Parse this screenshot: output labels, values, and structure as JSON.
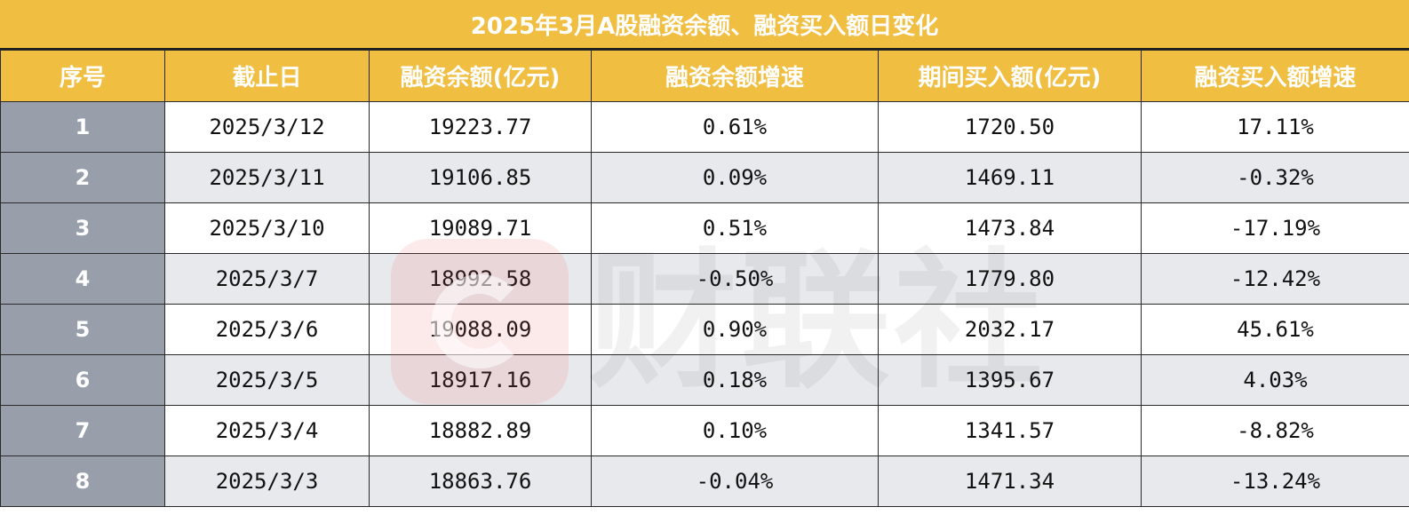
{
  "title": "2025年3月A股融资余额、融资买入额日变化",
  "columns": [
    "序号",
    "截止日",
    "融资余额(亿元)",
    "融资余额增速",
    "期间买入额(亿元)",
    "融资买入额增速"
  ],
  "rows": [
    [
      "1",
      "2025/3/12",
      "19223.77",
      "0.61%",
      "1720.50",
      "17.11%"
    ],
    [
      "2",
      "2025/3/11",
      "19106.85",
      "0.09%",
      "1469.11",
      "-0.32%"
    ],
    [
      "3",
      "2025/3/10",
      "19089.71",
      "0.51%",
      "1473.84",
      "-17.19%"
    ],
    [
      "4",
      "2025/3/7",
      "18992.58",
      "-0.50%",
      "1779.80",
      "-12.42%"
    ],
    [
      "5",
      "2025/3/6",
      "19088.09",
      "0.90%",
      "2032.17",
      "45.61%"
    ],
    [
      "6",
      "2025/3/5",
      "18917.16",
      "0.18%",
      "1395.67",
      "4.03%"
    ],
    [
      "7",
      "2025/3/4",
      "18882.89",
      "0.10%",
      "1341.57",
      "-8.82%"
    ],
    [
      "8",
      "2025/3/3",
      "18863.76",
      "-0.04%",
      "1471.34",
      "-13.24%"
    ]
  ],
  "watermark": "财联社",
  "colors": {
    "header": "#f0be41",
    "index_cell": "#989fab",
    "stripe": "#e8e9ec"
  }
}
